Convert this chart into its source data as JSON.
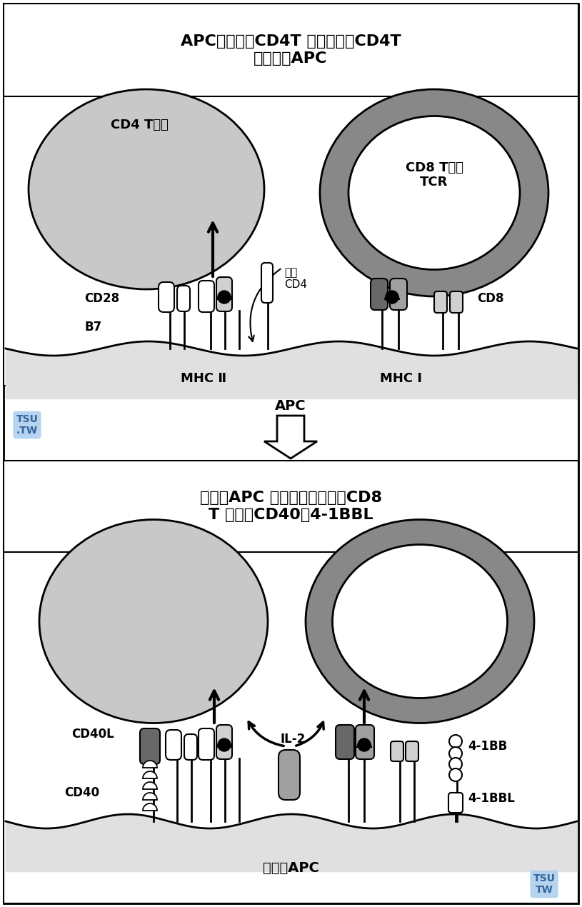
{
  "title_top": "APC刺激效应CD4T 细胞，继之CD4T\n细胞激活APC",
  "title_bottom": "激活的APC 表达协同刺激天然CD8\nT 细胞的CD40和4-1BBL",
  "apc_label_top": "APC",
  "apc_label_bottom": "激活的APC",
  "cd4_label": "CD4 T细胞",
  "cd8_label": "CD8 T细胞\nTCR",
  "cd28_label": "CD28",
  "b7_label": "B7",
  "mhc2_label": "MHC Ⅱ",
  "mhc1_label": "MHC Ⅰ",
  "cd4_receptor_label": "激活\nCD4",
  "cd8_receptor_label": "CD8",
  "cd40l_label": "CD40L",
  "cd40_label": "CD40",
  "il2_label": "IL-2",
  "bb4_label": "4-1BB",
  "bbl4_label": "4-1BBL",
  "bg_color": "#ffffff",
  "cell_cd4_color": "#c8c8c8",
  "cell_cd8_dark": "#888888",
  "cell_cd8_inner": "#ffffff",
  "apc_fill_color": "#e0e0e0",
  "light_gray": "#d0d0d0",
  "medium_gray": "#a0a0a0",
  "dark_gray": "#686868",
  "tsu_color_bg": "#aaccee",
  "tsu_color_text": "#336699"
}
